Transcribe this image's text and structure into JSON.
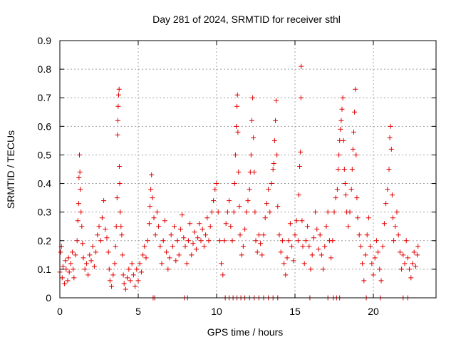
{
  "chart_data": {
    "type": "scatter",
    "title": "Day 281 of 2024, SRMTID for receiver sthl",
    "xlabel": "GPS time / hours",
    "ylabel": "SRMTID / TECUs",
    "xlim": [
      0,
      24
    ],
    "ylim": [
      0,
      0.9
    ],
    "x_ticks": [
      0,
      5,
      10,
      15,
      20
    ],
    "x_tick_labels": [
      "0",
      "5",
      "10",
      "15",
      "20"
    ],
    "y_ticks": [
      0,
      0.1,
      0.2,
      0.3,
      0.4,
      0.5,
      0.6,
      0.7,
      0.8,
      0.9
    ],
    "y_tick_labels": [
      "0",
      "0.1",
      "0.2",
      "0.3",
      "0.4",
      "0.5",
      "0.6",
      "0.7",
      "0.8",
      "0.9"
    ],
    "grid": true,
    "marker": "plus",
    "series": [
      {
        "name": "SRMTID",
        "color": "#e00000",
        "points": [
          [
            0.0,
            0.09
          ],
          [
            0.05,
            0.16
          ],
          [
            0.1,
            0.18
          ],
          [
            0.15,
            0.07
          ],
          [
            0.2,
            0.11
          ],
          [
            0.3,
            0.05
          ],
          [
            0.35,
            0.13
          ],
          [
            0.4,
            0.1
          ],
          [
            0.5,
            0.06
          ],
          [
            0.55,
            0.14
          ],
          [
            0.6,
            0.09
          ],
          [
            0.7,
            0.12
          ],
          [
            0.8,
            0.16
          ],
          [
            0.85,
            0.1
          ],
          [
            0.9,
            0.07
          ],
          [
            1.0,
            0.15
          ],
          [
            1.1,
            0.2
          ],
          [
            1.15,
            0.27
          ],
          [
            1.2,
            0.33
          ],
          [
            1.22,
            0.42
          ],
          [
            1.25,
            0.5
          ],
          [
            1.28,
            0.44
          ],
          [
            1.3,
            0.38
          ],
          [
            1.35,
            0.3
          ],
          [
            1.4,
            0.25
          ],
          [
            1.45,
            0.19
          ],
          [
            1.5,
            0.14
          ],
          [
            1.6,
            0.1
          ],
          [
            1.7,
            0.12
          ],
          [
            1.8,
            0.08
          ],
          [
            1.9,
            0.15
          ],
          [
            2.0,
            0.13
          ],
          [
            2.1,
            0.18
          ],
          [
            2.2,
            0.11
          ],
          [
            2.3,
            0.16
          ],
          [
            2.4,
            0.22
          ],
          [
            2.5,
            0.25
          ],
          [
            2.6,
            0.2
          ],
          [
            2.7,
            0.28
          ],
          [
            2.8,
            0.34
          ],
          [
            2.9,
            0.24
          ],
          [
            3.0,
            0.21
          ],
          [
            3.1,
            0.16
          ],
          [
            3.15,
            0.1
          ],
          [
            3.2,
            0.06
          ],
          [
            3.3,
            0.04
          ],
          [
            3.4,
            0.08
          ],
          [
            3.5,
            0.12
          ],
          [
            3.55,
            0.18
          ],
          [
            3.6,
            0.25
          ],
          [
            3.65,
            0.35
          ],
          [
            3.68,
            0.57
          ],
          [
            3.7,
            0.62
          ],
          [
            3.72,
            0.67
          ],
          [
            3.75,
            0.71
          ],
          [
            3.78,
            0.73
          ],
          [
            3.8,
            0.46
          ],
          [
            3.82,
            0.4
          ],
          [
            3.85,
            0.3
          ],
          [
            3.9,
            0.25
          ],
          [
            3.95,
            0.22
          ],
          [
            4.0,
            0.15
          ],
          [
            4.05,
            0.08
          ],
          [
            4.1,
            0.05
          ],
          [
            4.2,
            0.03
          ],
          [
            4.3,
            0.07
          ],
          [
            4.4,
            0.1
          ],
          [
            4.5,
            0.06
          ],
          [
            4.6,
            0.12
          ],
          [
            4.7,
            0.08
          ],
          [
            4.8,
            0.04
          ],
          [
            4.9,
            0.1
          ],
          [
            5.0,
            0.06
          ],
          [
            5.1,
            0.12
          ],
          [
            5.2,
            0.09
          ],
          [
            5.3,
            0.15
          ],
          [
            5.4,
            0.18
          ],
          [
            5.5,
            0.14
          ],
          [
            5.6,
            0.2
          ],
          [
            5.7,
            0.26
          ],
          [
            5.75,
            0.32
          ],
          [
            5.8,
            0.38
          ],
          [
            5.85,
            0.43
          ],
          [
            5.9,
            0.35
          ],
          [
            6.0,
            0.28
          ],
          [
            6.1,
            0.22
          ],
          [
            6.2,
            0.3
          ],
          [
            6.3,
            0.25
          ],
          [
            6.4,
            0.18
          ],
          [
            6.5,
            0.12
          ],
          [
            6.6,
            0.2
          ],
          [
            6.7,
            0.27
          ],
          [
            6.8,
            0.16
          ],
          [
            6.9,
            0.1
          ],
          [
            7.0,
            0.14
          ],
          [
            7.1,
            0.22
          ],
          [
            7.2,
            0.18
          ],
          [
            7.3,
            0.25
          ],
          [
            7.4,
            0.13
          ],
          [
            7.5,
            0.2
          ],
          [
            7.6,
            0.15
          ],
          [
            7.7,
            0.24
          ],
          [
            7.8,
            0.29
          ],
          [
            7.9,
            0.21
          ],
          [
            8.0,
            0.18
          ],
          [
            8.1,
            0.12
          ],
          [
            8.2,
            0.2
          ],
          [
            8.3,
            0.26
          ],
          [
            8.4,
            0.15
          ],
          [
            8.5,
            0.19
          ],
          [
            8.6,
            0.23
          ],
          [
            8.7,
            0.17
          ],
          [
            8.8,
            0.21
          ],
          [
            8.9,
            0.26
          ],
          [
            9.0,
            0.2
          ],
          [
            9.1,
            0.24
          ],
          [
            9.2,
            0.18
          ],
          [
            9.3,
            0.22
          ],
          [
            9.4,
            0.28
          ],
          [
            9.5,
            0.2
          ],
          [
            9.6,
            0.25
          ],
          [
            9.7,
            0.3
          ],
          [
            9.8,
            0.34
          ],
          [
            9.9,
            0.38
          ],
          [
            10.0,
            0.4
          ],
          [
            10.1,
            0.3
          ],
          [
            10.2,
            0.2
          ],
          [
            10.3,
            0.12
          ],
          [
            10.4,
            0.08
          ],
          [
            10.5,
            0.2
          ],
          [
            10.6,
            0.26
          ],
          [
            10.7,
            0.3
          ],
          [
            10.8,
            0.34
          ],
          [
            10.9,
            0.25
          ],
          [
            11.0,
            0.2
          ],
          [
            11.1,
            0.3
          ],
          [
            11.15,
            0.4
          ],
          [
            11.2,
            0.5
          ],
          [
            11.25,
            0.6
          ],
          [
            11.3,
            0.67
          ],
          [
            11.33,
            0.71
          ],
          [
            11.36,
            0.58
          ],
          [
            11.4,
            0.44
          ],
          [
            11.45,
            0.32
          ],
          [
            11.5,
            0.22
          ],
          [
            11.6,
            0.15
          ],
          [
            11.7,
            0.18
          ],
          [
            11.8,
            0.24
          ],
          [
            11.9,
            0.3
          ],
          [
            12.0,
            0.34
          ],
          [
            12.1,
            0.38
          ],
          [
            12.15,
            0.44
          ],
          [
            12.2,
            0.5
          ],
          [
            12.25,
            0.62
          ],
          [
            12.3,
            0.7
          ],
          [
            12.35,
            0.56
          ],
          [
            12.4,
            0.44
          ],
          [
            12.45,
            0.3
          ],
          [
            12.5,
            0.2
          ],
          [
            12.6,
            0.16
          ],
          [
            12.7,
            0.22
          ],
          [
            12.8,
            0.19
          ],
          [
            12.9,
            0.15
          ],
          [
            13.0,
            0.22
          ],
          [
            13.1,
            0.28
          ],
          [
            13.2,
            0.33
          ],
          [
            13.3,
            0.38
          ],
          [
            13.4,
            0.3
          ],
          [
            13.5,
            0.4
          ],
          [
            13.6,
            0.45
          ],
          [
            13.65,
            0.47
          ],
          [
            13.7,
            0.55
          ],
          [
            13.75,
            0.62
          ],
          [
            13.8,
            0.69
          ],
          [
            13.85,
            0.5
          ],
          [
            13.9,
            0.32
          ],
          [
            14.0,
            0.22
          ],
          [
            14.1,
            0.16
          ],
          [
            14.2,
            0.2
          ],
          [
            14.3,
            0.12
          ],
          [
            14.4,
            0.08
          ],
          [
            14.5,
            0.14
          ],
          [
            14.6,
            0.2
          ],
          [
            14.7,
            0.26
          ],
          [
            14.8,
            0.18
          ],
          [
            14.9,
            0.13
          ],
          [
            15.0,
            0.22
          ],
          [
            15.1,
            0.27
          ],
          [
            15.2,
            0.2
          ],
          [
            15.25,
            0.36
          ],
          [
            15.3,
            0.46
          ],
          [
            15.35,
            0.51
          ],
          [
            15.38,
            0.7
          ],
          [
            15.4,
            0.81
          ],
          [
            15.45,
            0.27
          ],
          [
            15.5,
            0.18
          ],
          [
            15.6,
            0.12
          ],
          [
            15.7,
            0.2
          ],
          [
            15.8,
            0.25
          ],
          [
            15.9,
            0.18
          ],
          [
            16.0,
            0.1
          ],
          [
            16.1,
            0.15
          ],
          [
            16.2,
            0.21
          ],
          [
            16.3,
            0.3
          ],
          [
            16.4,
            0.24
          ],
          [
            16.5,
            0.17
          ],
          [
            16.6,
            0.22
          ],
          [
            16.7,
            0.15
          ],
          [
            16.8,
            0.1
          ],
          [
            16.9,
            0.18
          ],
          [
            17.0,
            0.25
          ],
          [
            17.1,
            0.3
          ],
          [
            17.2,
            0.2
          ],
          [
            17.3,
            0.14
          ],
          [
            17.4,
            0.2
          ],
          [
            17.5,
            0.3
          ],
          [
            17.6,
            0.35
          ],
          [
            17.7,
            0.38
          ],
          [
            17.75,
            0.45
          ],
          [
            17.8,
            0.5
          ],
          [
            17.85,
            0.55
          ],
          [
            17.9,
            0.59
          ],
          [
            17.95,
            0.62
          ],
          [
            18.0,
            0.66
          ],
          [
            18.05,
            0.7
          ],
          [
            18.1,
            0.55
          ],
          [
            18.15,
            0.45
          ],
          [
            18.2,
            0.4
          ],
          [
            18.25,
            0.36
          ],
          [
            18.3,
            0.3
          ],
          [
            18.4,
            0.25
          ],
          [
            18.5,
            0.3
          ],
          [
            18.6,
            0.38
          ],
          [
            18.65,
            0.45
          ],
          [
            18.7,
            0.52
          ],
          [
            18.75,
            0.58
          ],
          [
            18.8,
            0.65
          ],
          [
            18.85,
            0.73
          ],
          [
            18.9,
            0.5
          ],
          [
            18.95,
            0.35
          ],
          [
            19.0,
            0.28
          ],
          [
            19.1,
            0.22
          ],
          [
            19.2,
            0.18
          ],
          [
            19.3,
            0.12
          ],
          [
            19.4,
            0.06
          ],
          [
            19.5,
            0.15
          ],
          [
            19.6,
            0.22
          ],
          [
            19.7,
            0.28
          ],
          [
            19.8,
            0.18
          ],
          [
            19.9,
            0.12
          ],
          [
            20.0,
            0.08
          ],
          [
            20.1,
            0.14
          ],
          [
            20.2,
            0.2
          ],
          [
            20.3,
            0.16
          ],
          [
            20.4,
            0.1
          ],
          [
            20.5,
            0.06
          ],
          [
            20.6,
            0.18
          ],
          [
            20.7,
            0.26
          ],
          [
            20.8,
            0.33
          ],
          [
            20.9,
            0.38
          ],
          [
            21.0,
            0.45
          ],
          [
            21.05,
            0.56
          ],
          [
            21.1,
            0.6
          ],
          [
            21.15,
            0.52
          ],
          [
            21.2,
            0.36
          ],
          [
            21.25,
            0.28
          ],
          [
            21.3,
            0.2
          ],
          [
            21.4,
            0.25
          ],
          [
            21.5,
            0.3
          ],
          [
            21.6,
            0.22
          ],
          [
            21.7,
            0.16
          ],
          [
            21.8,
            0.1
          ],
          [
            21.9,
            0.15
          ],
          [
            22.0,
            0.12
          ],
          [
            22.1,
            0.2
          ],
          [
            22.2,
            0.14
          ],
          [
            22.3,
            0.1
          ],
          [
            22.4,
            0.07
          ],
          [
            22.5,
            0.12
          ],
          [
            22.6,
            0.16
          ],
          [
            22.7,
            0.11
          ],
          [
            22.8,
            0.15
          ],
          [
            22.85,
            0.18
          ],
          [
            5.95,
            0.0
          ],
          [
            6.05,
            0.0
          ],
          [
            7.95,
            0.0
          ],
          [
            8.15,
            0.0
          ],
          [
            10.55,
            0.0
          ],
          [
            10.8,
            0.0
          ],
          [
            11.05,
            0.0
          ],
          [
            11.3,
            0.0
          ],
          [
            11.55,
            0.0
          ],
          [
            11.8,
            0.0
          ],
          [
            12.1,
            0.0
          ],
          [
            12.4,
            0.0
          ],
          [
            12.7,
            0.0
          ],
          [
            13.0,
            0.0
          ],
          [
            13.3,
            0.0
          ],
          [
            13.6,
            0.0
          ],
          [
            13.9,
            0.0
          ],
          [
            15.95,
            0.0
          ],
          [
            17.1,
            0.0
          ],
          [
            17.45,
            0.0
          ],
          [
            17.65,
            0.0
          ],
          [
            17.85,
            0.0
          ],
          [
            19.55,
            0.0
          ],
          [
            20.45,
            0.0
          ],
          [
            21.9,
            0.0
          ],
          [
            22.2,
            0.0
          ]
        ]
      }
    ]
  }
}
